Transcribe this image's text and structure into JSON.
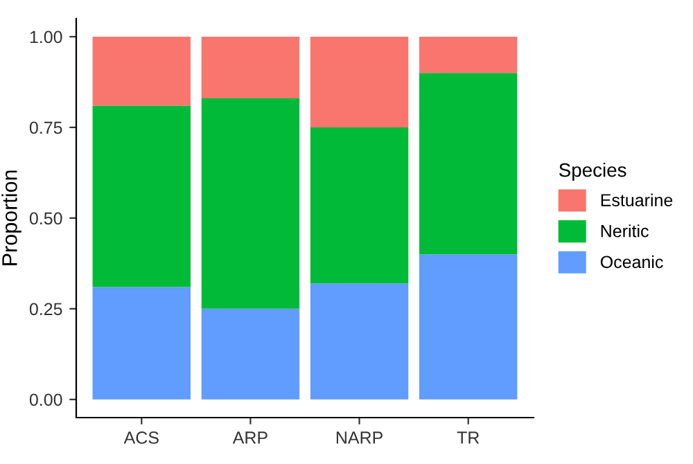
{
  "chart_data": {
    "type": "bar",
    "stacked": true,
    "ylabel": "Proportion",
    "legend_title": "Species",
    "legend": "right",
    "grid": false,
    "categories": [
      "ACS",
      "ARP",
      "NARP",
      "TR"
    ],
    "series": [
      {
        "name": "Oceanic",
        "color": "#619cff",
        "values": [
          0.31,
          0.25,
          0.32,
          0.4
        ]
      },
      {
        "name": "Neritic",
        "color": "#00ba38",
        "values": [
          0.5,
          0.58,
          0.43,
          0.5
        ]
      },
      {
        "name": "Estuarine",
        "color": "#f8766d",
        "values": [
          0.19,
          0.17,
          0.25,
          0.1
        ]
      }
    ],
    "ylim": [
      -0.05,
      1.05
    ],
    "yticks": [
      {
        "value": 0,
        "label": "0.00"
      },
      {
        "value": 0.25,
        "label": "0.25"
      },
      {
        "value": 0.5,
        "label": "0.50"
      },
      {
        "value": 0.75,
        "label": "0.75"
      },
      {
        "value": 1,
        "label": "1.00"
      }
    ]
  }
}
